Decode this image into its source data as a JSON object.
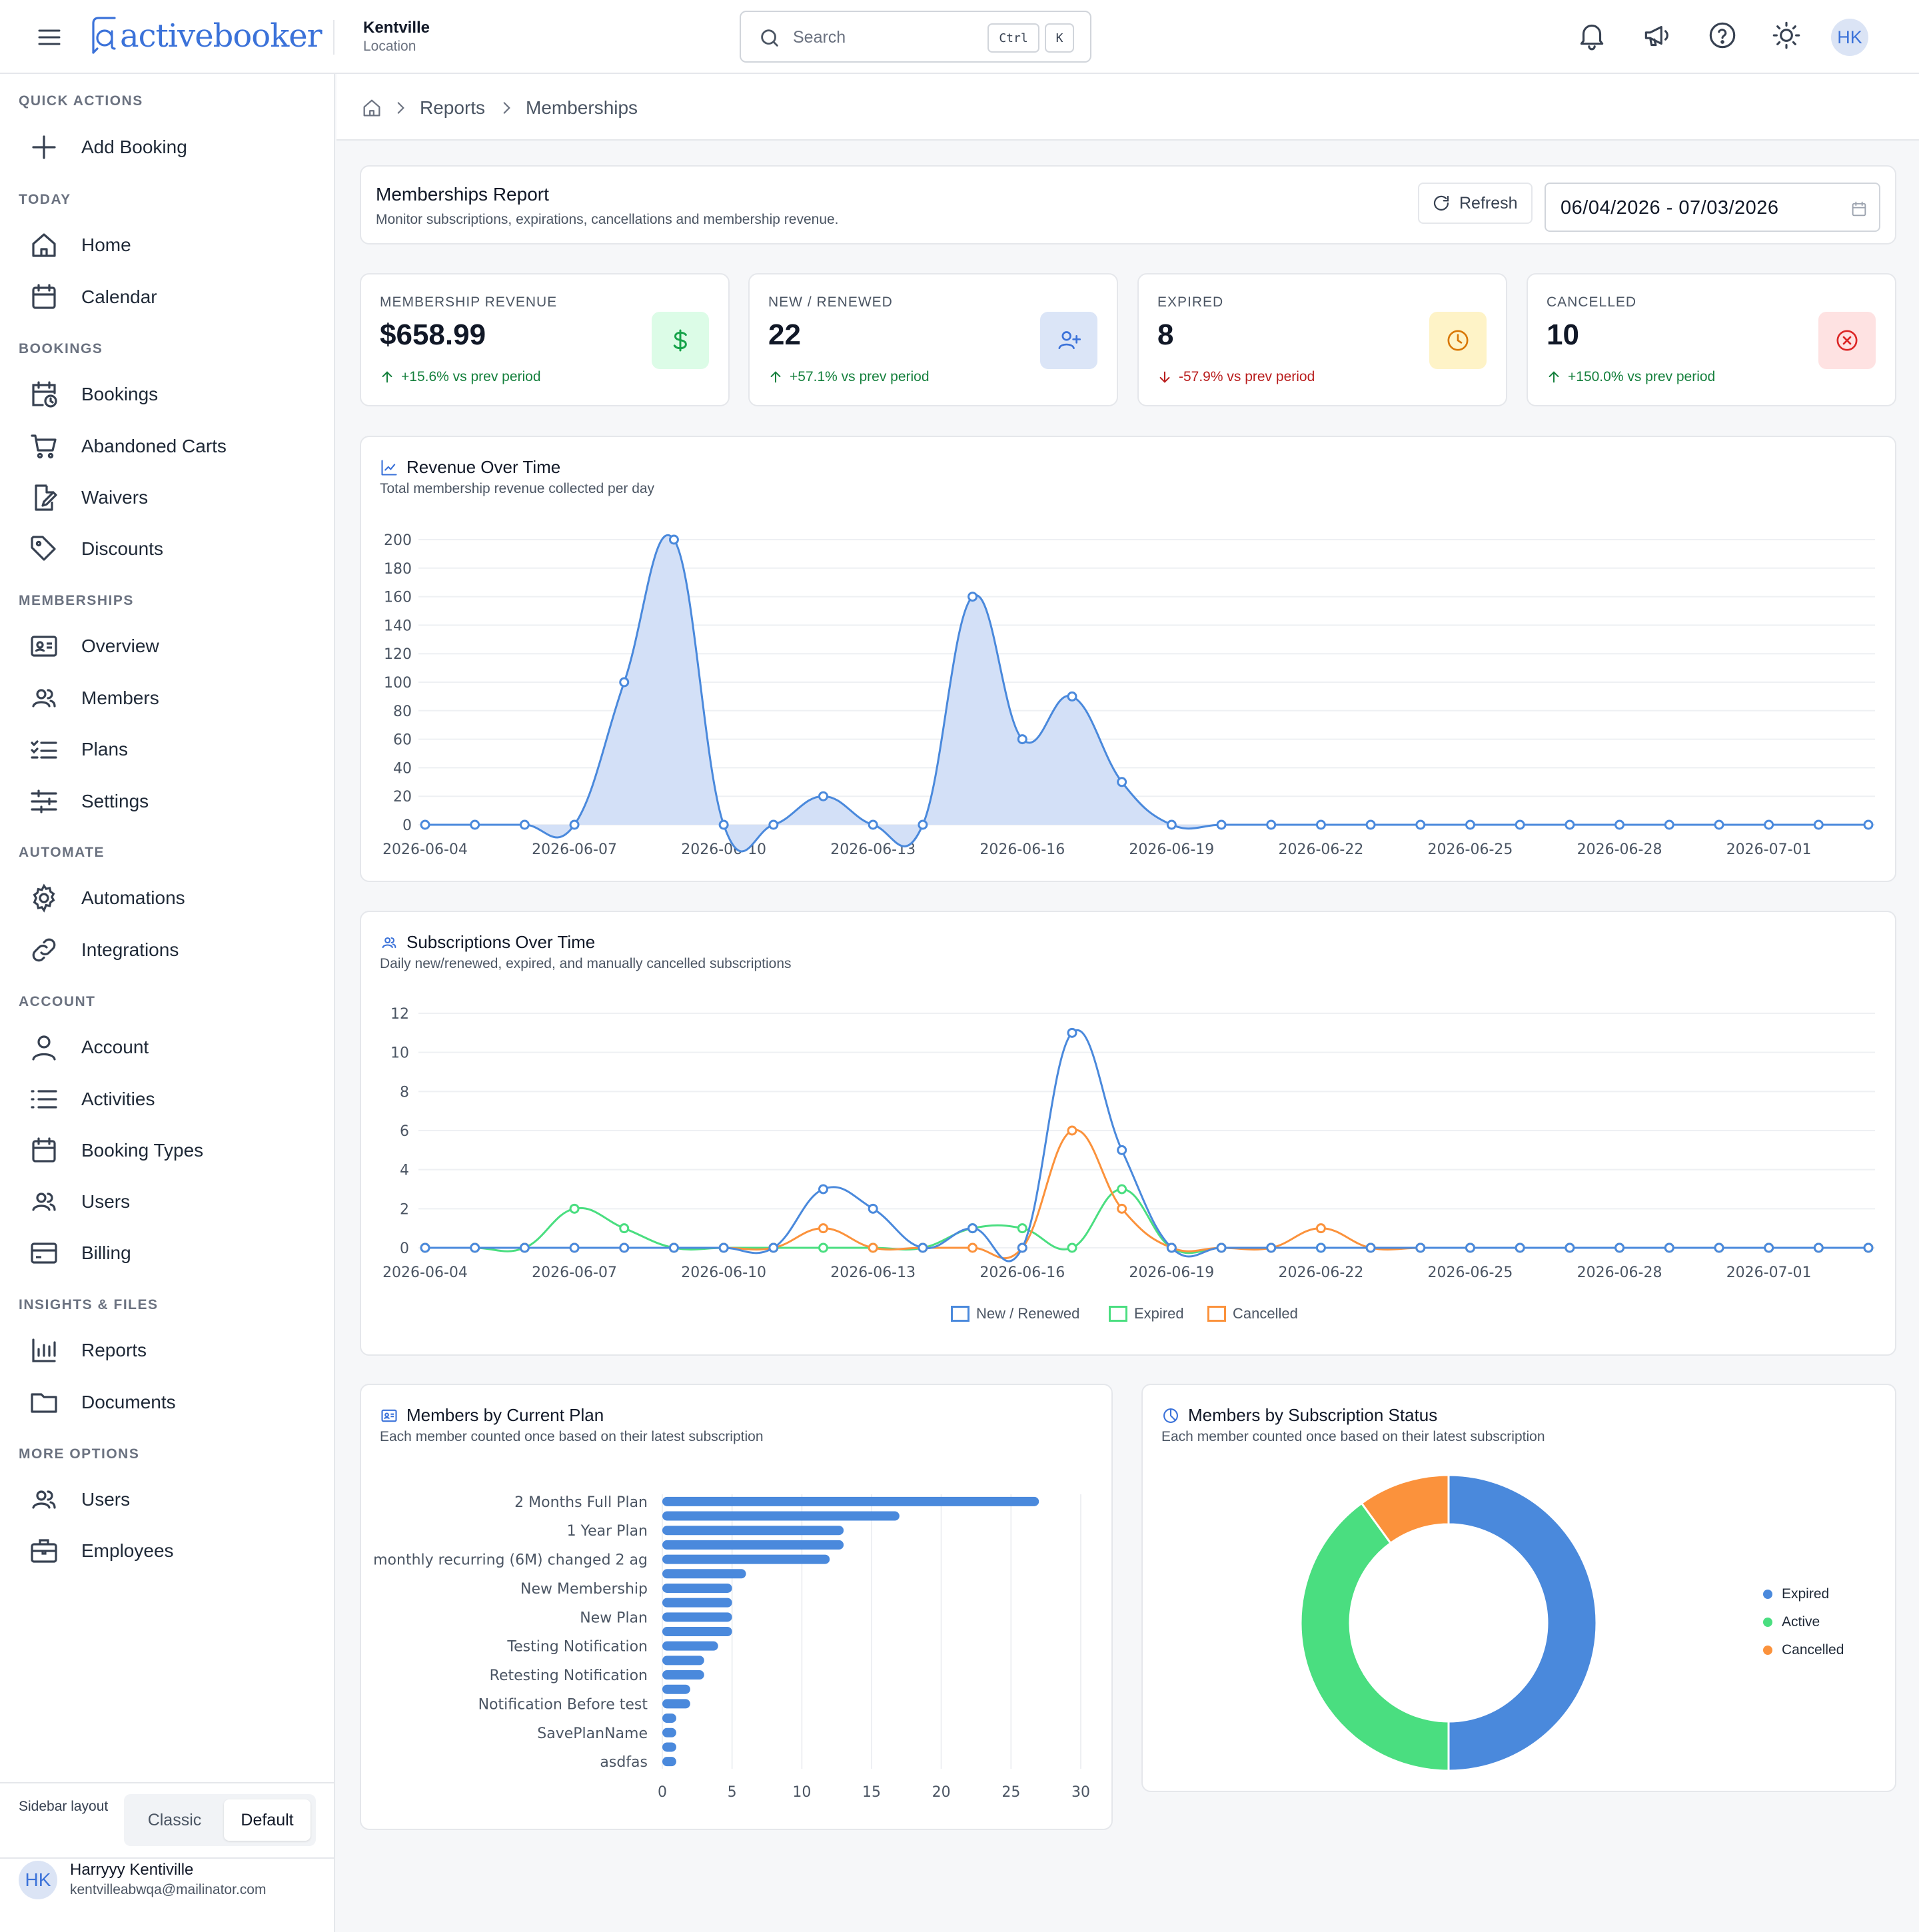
{
  "header": {
    "logo_text": "activebooker",
    "location_name": "Kentville",
    "location_label": "Location",
    "search_placeholder": "Search",
    "shortcut_ctrl": "Ctrl",
    "shortcut_k": "K",
    "avatar_initials": "HK"
  },
  "sidebar": {
    "sections": [
      {
        "title": "QUICK ACTIONS",
        "items": [
          {
            "label": "Add Booking",
            "icon": "plus-icon"
          }
        ]
      },
      {
        "title": "TODAY",
        "items": [
          {
            "label": "Home",
            "icon": "home-icon"
          },
          {
            "label": "Calendar",
            "icon": "calendar-icon"
          }
        ]
      },
      {
        "title": "BOOKINGS",
        "items": [
          {
            "label": "Bookings",
            "icon": "calendar-clock-icon"
          },
          {
            "label": "Abandoned Carts",
            "icon": "cart-icon"
          },
          {
            "label": "Waivers",
            "icon": "file-signature-icon"
          },
          {
            "label": "Discounts",
            "icon": "tag-icon"
          }
        ]
      },
      {
        "title": "MEMBERSHIPS",
        "items": [
          {
            "label": "Overview",
            "icon": "id-card-icon"
          },
          {
            "label": "Members",
            "icon": "users-icon"
          },
          {
            "label": "Plans",
            "icon": "list-check-icon"
          },
          {
            "label": "Settings",
            "icon": "sliders-icon"
          }
        ]
      },
      {
        "title": "AUTOMATE",
        "items": [
          {
            "label": "Automations",
            "icon": "gear-icon"
          },
          {
            "label": "Integrations",
            "icon": "link-icon"
          }
        ]
      },
      {
        "title": "ACCOUNT",
        "items": [
          {
            "label": "Account",
            "icon": "user-icon"
          },
          {
            "label": "Activities",
            "icon": "list-icon"
          },
          {
            "label": "Booking Types",
            "icon": "calendar-icon"
          },
          {
            "label": "Users",
            "icon": "users-icon"
          },
          {
            "label": "Billing",
            "icon": "credit-card-icon"
          }
        ]
      },
      {
        "title": "INSIGHTS & FILES",
        "items": [
          {
            "label": "Reports",
            "icon": "bar-chart-icon"
          },
          {
            "label": "Documents",
            "icon": "folder-icon"
          }
        ]
      },
      {
        "title": "MORE OPTIONS",
        "items": [
          {
            "label": "Users",
            "icon": "users-icon"
          },
          {
            "label": "Employees",
            "icon": "briefcase-icon"
          }
        ]
      }
    ],
    "layout_label": "Sidebar layout",
    "layout_options": [
      "Classic",
      "Default"
    ],
    "layout_selected": "Default",
    "user": {
      "initials": "HK",
      "name": "Harryyy Kentiville",
      "email": "kentvilleabwqa@mailinator.com"
    }
  },
  "breadcrumb": {
    "items": [
      "Reports",
      "Memberships"
    ]
  },
  "report": {
    "title": "Memberships Report",
    "subtitle": "Monitor subscriptions, expirations, cancellations and membership revenue.",
    "refresh_label": "Refresh",
    "date_range": "06/04/2026 - 07/03/2026"
  },
  "stats": [
    {
      "label": "MEMBERSHIP REVENUE",
      "value": "$658.99",
      "delta": "+15.6% vs prev period",
      "direction": "up",
      "icon": "dollar-icon",
      "bg": "#dcfce7",
      "fg": "#16a34a"
    },
    {
      "label": "NEW / RENEWED",
      "value": "22",
      "delta": "+57.1% vs prev period",
      "direction": "up",
      "icon": "user-plus-icon",
      "bg": "#dbe5f7",
      "fg": "#3b72d9"
    },
    {
      "label": "EXPIRED",
      "value": "8",
      "delta": "-57.9% vs prev period",
      "direction": "down",
      "icon": "clock-icon",
      "bg": "#fef3c7",
      "fg": "#d97706"
    },
    {
      "label": "CANCELLED",
      "value": "10",
      "delta": "+150.0% vs prev period",
      "direction": "up",
      "icon": "x-circle-icon",
      "bg": "#fee2e2",
      "fg": "#dc2626"
    }
  ],
  "cards": {
    "revenue": {
      "title": "Revenue Over Time",
      "subtitle": "Total membership revenue collected per day"
    },
    "subscriptions": {
      "title": "Subscriptions Over Time",
      "subtitle": "Daily new/renewed, expired, and manually cancelled subscriptions"
    },
    "plans": {
      "title": "Members by Current Plan",
      "subtitle": "Each member counted once based on their latest subscription"
    },
    "status": {
      "title": "Members by Subscription Status",
      "subtitle": "Each member counted once based on their latest subscription"
    }
  },
  "colors": {
    "blue": "#4a89dc",
    "green": "#4ade80",
    "orange": "#fb923c",
    "area_fill": "#d3e0f7"
  },
  "chart_data": [
    {
      "type": "area",
      "title": "Revenue Over Time",
      "x": [
        "2026-06-04",
        "2026-06-05",
        "2026-06-06",
        "2026-06-07",
        "2026-06-08",
        "2026-06-09",
        "2026-06-10",
        "2026-06-11",
        "2026-06-12",
        "2026-06-13",
        "2026-06-14",
        "2026-06-15",
        "2026-06-16",
        "2026-06-17",
        "2026-06-18",
        "2026-06-19",
        "2026-06-20",
        "2026-06-21",
        "2026-06-22",
        "2026-06-23",
        "2026-06-24",
        "2026-06-25",
        "2026-06-26",
        "2026-06-27",
        "2026-06-28",
        "2026-06-29",
        "2026-06-30",
        "2026-07-01",
        "2026-07-02",
        "2026-07-03"
      ],
      "x_tick_labels": [
        "2026-06-04",
        "2026-06-07",
        "2026-06-10",
        "2026-06-13",
        "2026-06-16",
        "2026-06-19",
        "2026-06-22",
        "2026-06-25",
        "2026-06-28",
        "2026-07-01"
      ],
      "values": [
        0,
        0,
        0,
        0,
        100,
        200,
        0,
        0,
        20,
        0,
        0,
        160,
        60,
        90,
        30,
        0,
        0,
        0,
        0,
        0,
        0,
        0,
        0,
        0,
        0,
        0,
        0,
        0,
        0,
        0
      ],
      "ylim": [
        0,
        200
      ],
      "y_ticks": [
        0,
        20,
        40,
        60,
        80,
        100,
        120,
        140,
        160,
        180,
        200
      ],
      "grid": true
    },
    {
      "type": "line",
      "title": "Subscriptions Over Time",
      "x": [
        "2026-06-04",
        "2026-06-05",
        "2026-06-06",
        "2026-06-07",
        "2026-06-08",
        "2026-06-09",
        "2026-06-10",
        "2026-06-11",
        "2026-06-12",
        "2026-06-13",
        "2026-06-14",
        "2026-06-15",
        "2026-06-16",
        "2026-06-17",
        "2026-06-18",
        "2026-06-19",
        "2026-06-20",
        "2026-06-21",
        "2026-06-22",
        "2026-06-23",
        "2026-06-24",
        "2026-06-25",
        "2026-06-26",
        "2026-06-27",
        "2026-06-28",
        "2026-06-29",
        "2026-06-30",
        "2026-07-01",
        "2026-07-02",
        "2026-07-03"
      ],
      "x_tick_labels": [
        "2026-06-04",
        "2026-06-07",
        "2026-06-10",
        "2026-06-13",
        "2026-06-16",
        "2026-06-19",
        "2026-06-22",
        "2026-06-25",
        "2026-06-28",
        "2026-07-01"
      ],
      "series": [
        {
          "name": "New / Renewed",
          "color": "#4a89dc",
          "values": [
            0,
            0,
            0,
            0,
            0,
            0,
            0,
            0,
            3,
            2,
            0,
            1,
            0,
            11,
            5,
            0,
            0,
            0,
            0,
            0,
            0,
            0,
            0,
            0,
            0,
            0,
            0,
            0,
            0,
            0
          ]
        },
        {
          "name": "Expired",
          "color": "#4ade80",
          "values": [
            0,
            0,
            0,
            2,
            1,
            0,
            0,
            0,
            0,
            0,
            0,
            1,
            1,
            0,
            3,
            0,
            0,
            0,
            0,
            0,
            0,
            0,
            0,
            0,
            0,
            0,
            0,
            0,
            0,
            0
          ]
        },
        {
          "name": "Cancelled",
          "color": "#fb923c",
          "values": [
            0,
            0,
            0,
            0,
            0,
            0,
            0,
            0,
            1,
            0,
            0,
            0,
            0,
            6,
            2,
            0,
            0,
            0,
            1,
            0,
            0,
            0,
            0,
            0,
            0,
            0,
            0,
            0,
            0,
            0
          ]
        }
      ],
      "ylim": [
        0,
        12
      ],
      "y_ticks": [
        0,
        2,
        4,
        6,
        8,
        10,
        12
      ],
      "legend": "bottom",
      "grid": true
    },
    {
      "type": "bar",
      "orientation": "horizontal",
      "title": "Members by Current Plan",
      "categories": [
        "2 Months Full Plan",
        "",
        "1 Year Plan",
        "",
        "monthly recurring (6M) changed 2 ag",
        "",
        "New Membership",
        "",
        "New Plan",
        "",
        "Testing Notification",
        "",
        "Retesting Notification",
        "",
        "Notification Before test",
        "",
        "SavePlanName",
        "",
        "asdfas"
      ],
      "values": [
        27,
        17,
        13,
        13,
        12,
        6,
        5,
        5,
        5,
        5,
        4,
        3,
        3,
        2,
        2,
        1,
        1,
        1,
        1
      ],
      "xlim": [
        0,
        30
      ],
      "x_ticks": [
        0,
        5,
        10,
        15,
        20,
        25,
        30
      ],
      "color": "#4a89dc",
      "grid": true
    },
    {
      "type": "pie",
      "subtype": "donut",
      "title": "Members by Subscription Status",
      "labels": [
        "Expired",
        "Active",
        "Cancelled"
      ],
      "values": [
        50,
        40,
        10
      ],
      "colors": [
        "#4a89dc",
        "#4ade80",
        "#fb923c"
      ],
      "legend": "right"
    }
  ]
}
